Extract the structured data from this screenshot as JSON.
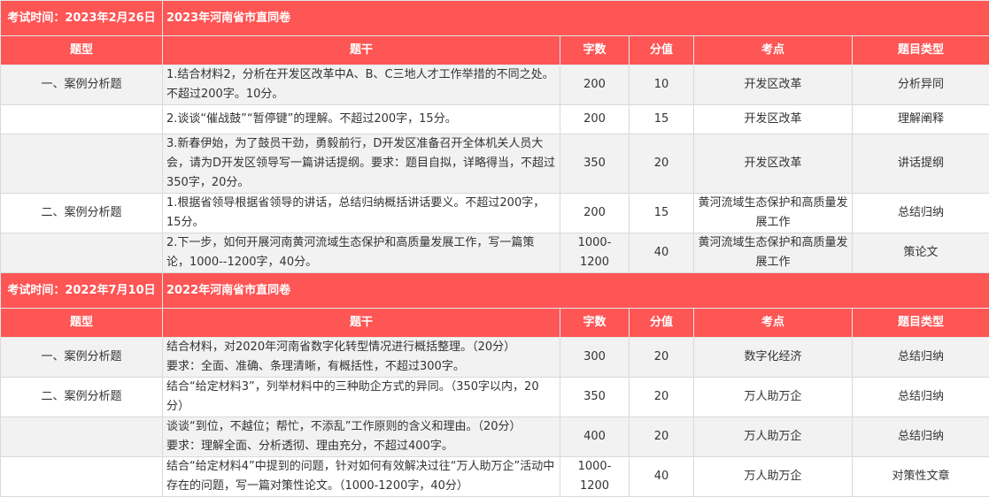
{
  "columns": [
    "题型",
    "题干",
    "字数",
    "分值",
    "考点",
    "题目类型"
  ],
  "sections": [
    {
      "exam_time": "考试时间：2023年2月26日",
      "exam_name": "2023年河南省市直同卷",
      "rows": [
        {
          "type": "一、案例分析题",
          "stem": "1.结合材料2，分析在开发区改革中A、B、C三地人才工作举措的不同之处。不超过200字。10分。",
          "words": "200",
          "score": "10",
          "point": "开发区改革",
          "category": "分析异同"
        },
        {
          "type": "",
          "stem": "2.谈谈“催战鼓”“暂停键”的理解。不超过200字，15分。",
          "words": "200",
          "score": "15",
          "point": "开发区改革",
          "category": "理解阐释"
        },
        {
          "type": "",
          "stem": "3.新春伊始，为了鼓员干劲，勇毅前行，D开发区准备召开全体机关人员大会，请为D开发区领导写一篇讲话提纲。要求：题目自拟，详略得当，不超过350字，20分。",
          "words": "350",
          "score": "20",
          "point": "开发区改革",
          "category": "讲话提纲"
        },
        {
          "type": "二、案例分析题",
          "stem": "1.根据省领导根据省领导的讲话，总结归纳概括讲话要义。不超过200字，15分。",
          "words": "200",
          "score": "15",
          "point": "黄河流域生态保护和高质量发展工作",
          "category": "总结归纳"
        },
        {
          "type": "",
          "stem": "2.下一步，如何开展河南黄河流域生态保护和高质量发展工作，写一篇策论，1000--1200字，40分。",
          "words": "1000-1200",
          "score": "40",
          "point": "黄河流域生态保护和高质量发展工作",
          "category": "策论文"
        }
      ]
    },
    {
      "exam_time": "考试时间：2022年7月10日",
      "exam_name": "2022年河南省市直同卷",
      "rows": [
        {
          "type": "一、案例分析题",
          "stem": "结合材料，对2020年河南省数字化转型情况进行概括整理。（20分）\n要求：全面、准确、条理清晰，有概括性，不超过300字。",
          "words": "300",
          "score": "20",
          "point": "数字化经济",
          "category": "总结归纳"
        },
        {
          "type": "二、案例分析题",
          "stem": "结合“给定材料3”，列举材料中的三种助企方式的异同。（350字以内，20分）",
          "words": "350",
          "score": "20",
          "point": "万人助万企",
          "category": "总结归纳"
        },
        {
          "type": "",
          "stem": "谈谈“到位，不越位；帮忙，不添乱”工作原则的含义和理由。（20分）\n要求：理解全面、分析透彻、理由充分，不超过400字。",
          "words": "400",
          "score": "20",
          "point": "万人助万企",
          "category": "总结归纳"
        },
        {
          "type": "",
          "stem": "结合“给定材料4”中提到的问题，针对如何有效解决过往“万人助万企”活动中存在的问题，写一篇对策性论文。（1000-1200字，40分）",
          "words": "1000-1200",
          "score": "40",
          "point": "万人助万企",
          "category": "对策性文章"
        }
      ]
    }
  ],
  "colors": {
    "header": "#fe5555",
    "row_alt": "#f2f2f2"
  }
}
